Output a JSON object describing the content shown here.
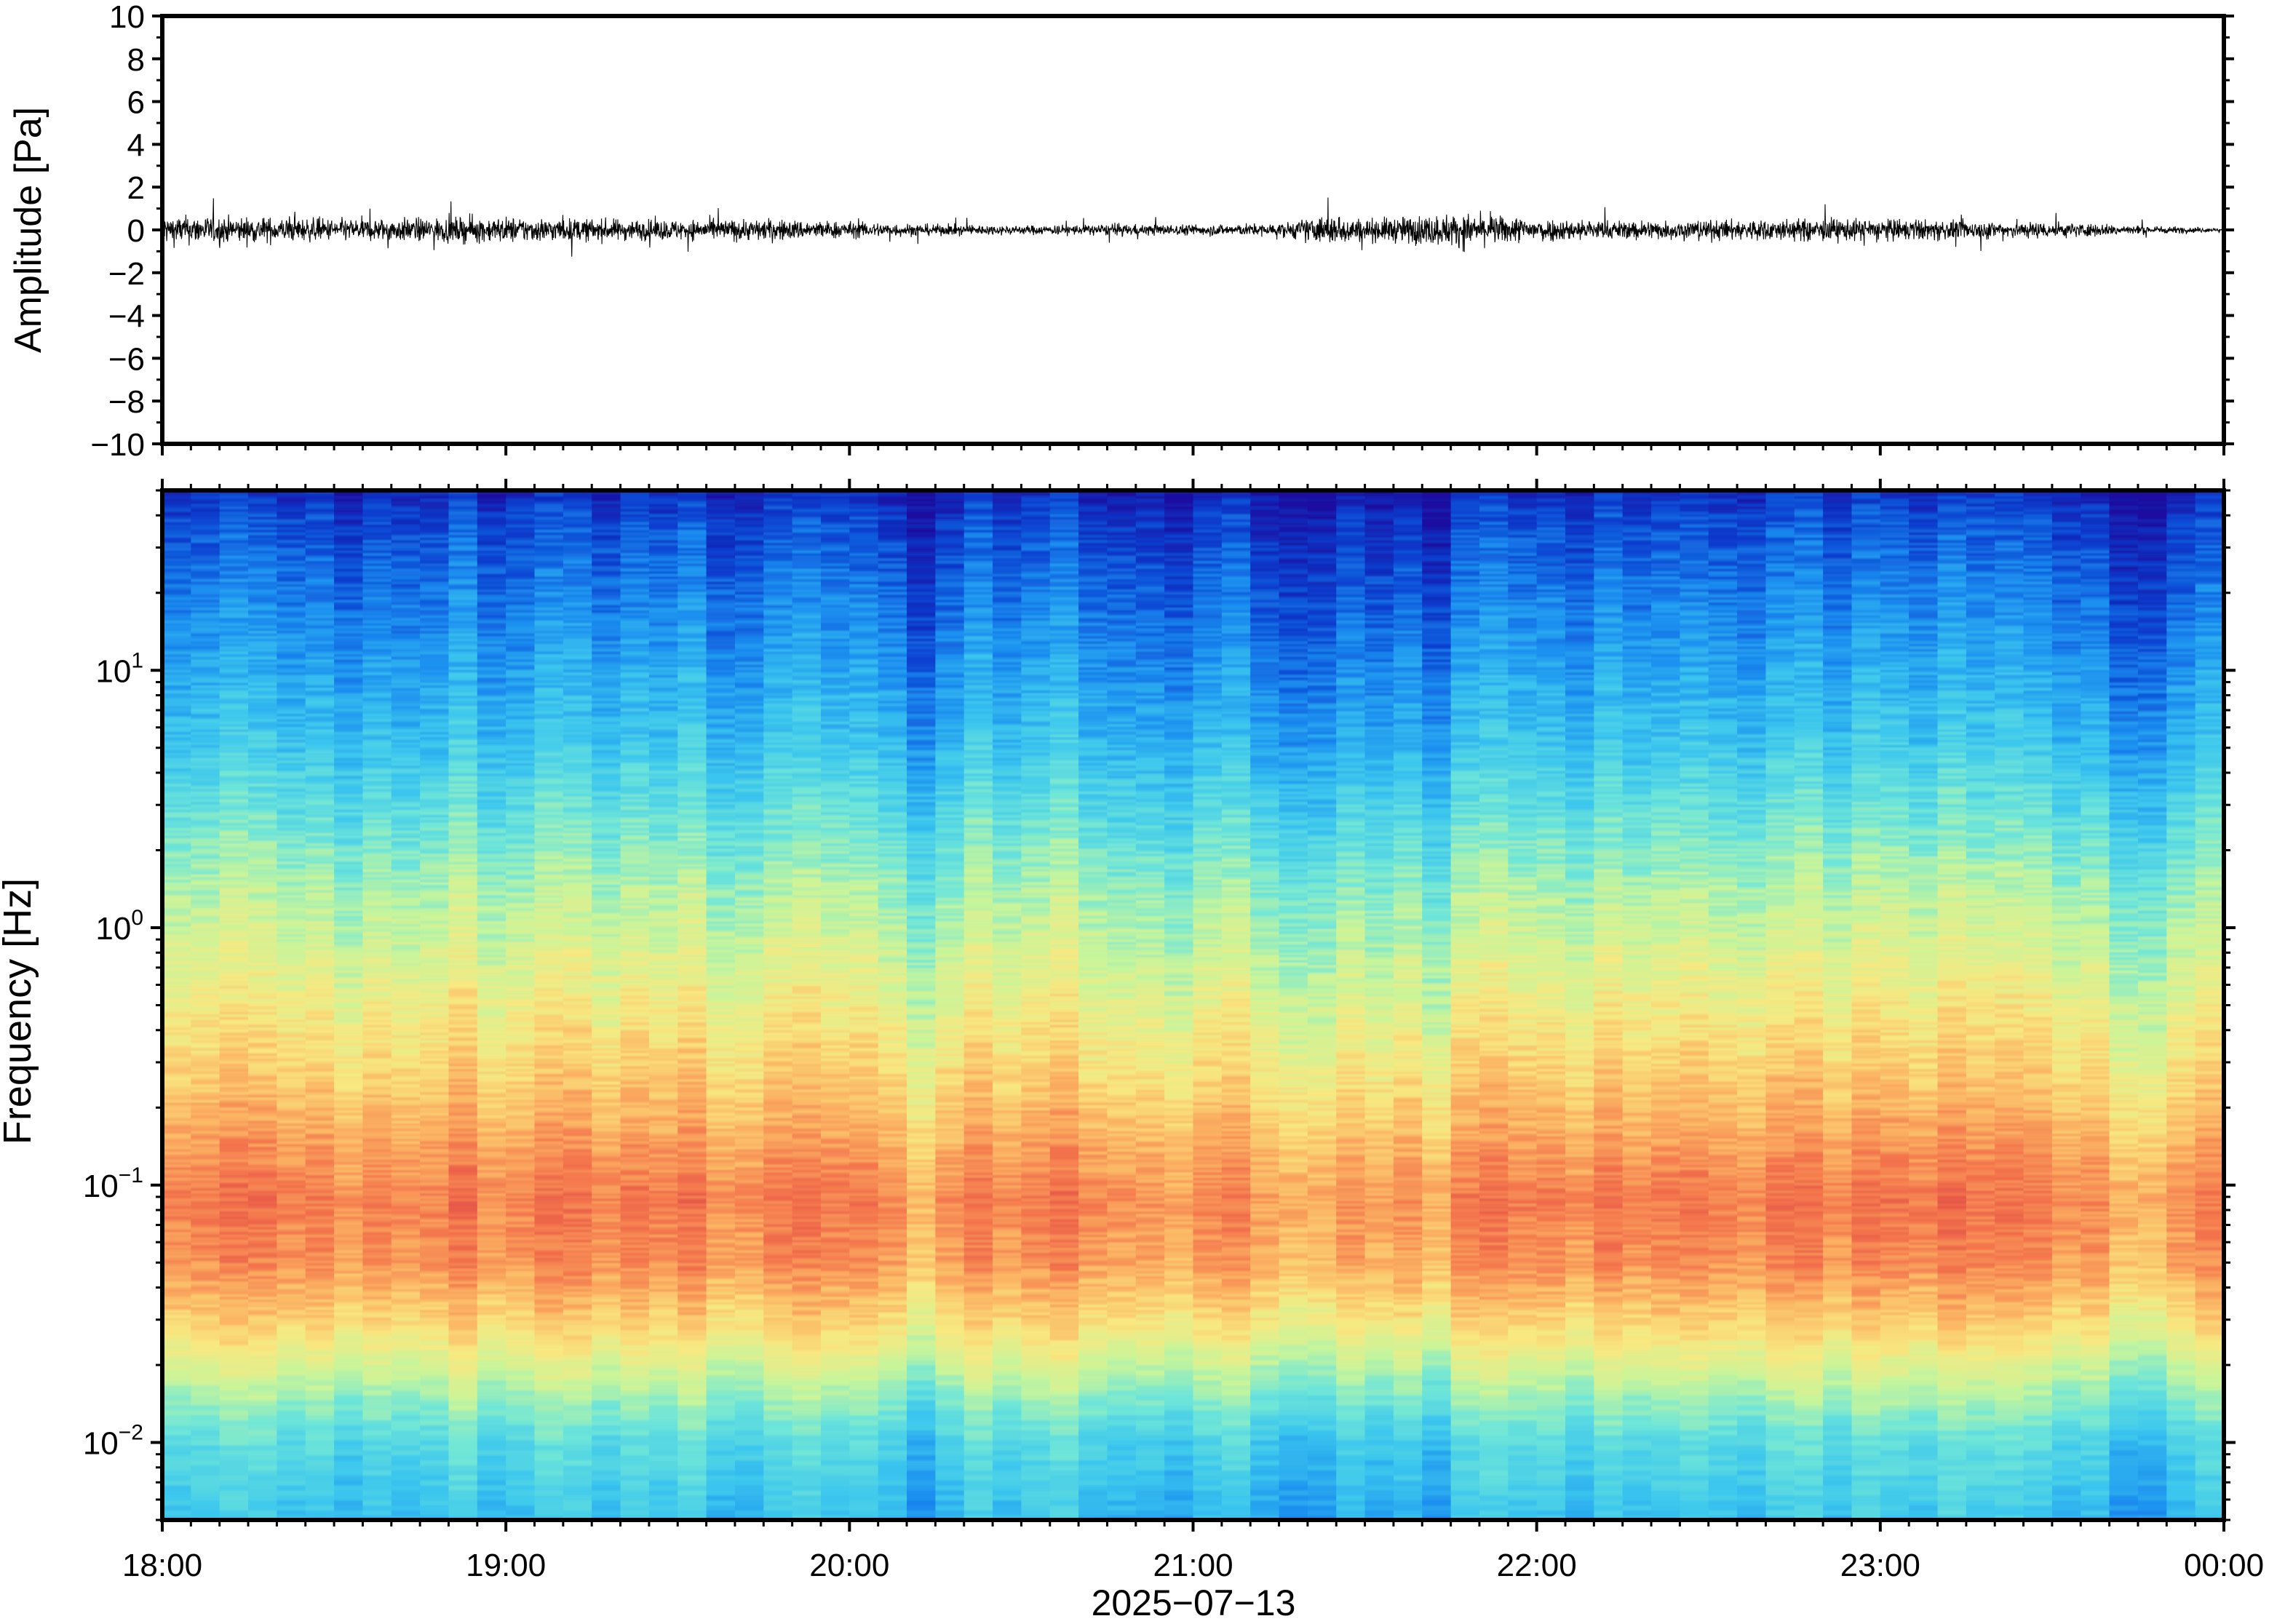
{
  "chart_data": [
    {
      "type": "line",
      "title": "",
      "xlabel": "",
      "ylabel": "Amplitude [Pa]",
      "xlim": [
        "18:00",
        "00:00"
      ],
      "ylim": [
        -10,
        10
      ],
      "yticks": [
        "10",
        "8",
        "6",
        "4",
        "2",
        "0",
        "−2",
        "−4",
        "−6",
        "−8",
        "−10"
      ],
      "ytick_values": [
        10,
        8,
        6,
        4,
        2,
        0,
        -2,
        -4,
        -6,
        -8,
        -10
      ],
      "grid": false,
      "series_color": "#000000",
      "envelope": {
        "hours_from_start": [
          0.0,
          0.25,
          0.5,
          0.75,
          1.0,
          1.25,
          1.5,
          1.75,
          2.0,
          2.25,
          2.5,
          2.75,
          3.0,
          3.25,
          3.4,
          3.5,
          3.75,
          4.0,
          4.25,
          4.5,
          4.75,
          5.0,
          5.25,
          5.5,
          5.75,
          6.0
        ],
        "peak_pa": [
          1.6,
          1.4,
          1.2,
          1.3,
          1.4,
          1.2,
          1.1,
          1.2,
          0.9,
          0.6,
          0.5,
          0.6,
          0.6,
          0.7,
          1.7,
          1.2,
          1.8,
          1.3,
          1.0,
          1.1,
          1.2,
          1.2,
          1.0,
          0.9,
          0.5,
          0.2
        ]
      }
    },
    {
      "type": "heatmap",
      "title": "",
      "xlabel": "2025−07−13",
      "ylabel": "Frequency [Hz]",
      "xticks": [
        "18:00",
        "19:00",
        "20:00",
        "21:00",
        "22:00",
        "23:00",
        "00:00"
      ],
      "y_scale": "log",
      "ylim": [
        0.005,
        50
      ],
      "yticks": [
        {
          "base": "10",
          "exp": "1",
          "value": 10
        },
        {
          "base": "10",
          "exp": "0",
          "value": 1
        },
        {
          "base": "10",
          "exp": "−1",
          "value": 0.1
        },
        {
          "base": "10",
          "exp": "−2",
          "value": 0.01
        }
      ],
      "colormap": [
        "#1a0fa0",
        "#0a3fd0",
        "#1b8ef0",
        "#3bc6ee",
        "#6fe6d8",
        "#c8f59a",
        "#f8e880",
        "#fbb463",
        "#f4764d",
        "#e04a45"
      ],
      "columns_count": 72,
      "peak_energy_band_hz": [
        0.05,
        0.15
      ],
      "noted_low_energy_columns_hours": [
        2.25,
        2.9,
        3.3,
        3.6,
        5.8
      ]
    }
  ]
}
